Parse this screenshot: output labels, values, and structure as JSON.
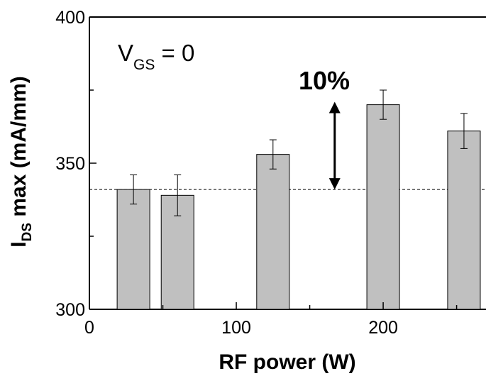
{
  "chart_data": {
    "type": "bar",
    "x": [
      30,
      60,
      125,
      200,
      255
    ],
    "values": [
      341,
      339,
      353,
      370,
      361
    ],
    "error": [
      5,
      7,
      5,
      5,
      6
    ],
    "bar_color": "#c0c0c0",
    "reference_line": {
      "y": 341,
      "style": "dashed"
    },
    "xlim": [
      0,
      270
    ],
    "ylim": [
      300,
      400
    ],
    "xticks": [
      0,
      100,
      200
    ],
    "yticks": [
      300,
      350,
      400
    ],
    "xlabel": "RF power (W)",
    "ylabel": {
      "main": "I",
      "sub": "DS",
      "rest": " max (mA/mm)"
    },
    "annotations": {
      "condition": {
        "main": "V",
        "sub": "GS",
        "rest": " = 0"
      },
      "percent": "10%",
      "arrow": {
        "from_y": 341,
        "to_y": 371,
        "x": 167
      }
    },
    "grid": false
  }
}
